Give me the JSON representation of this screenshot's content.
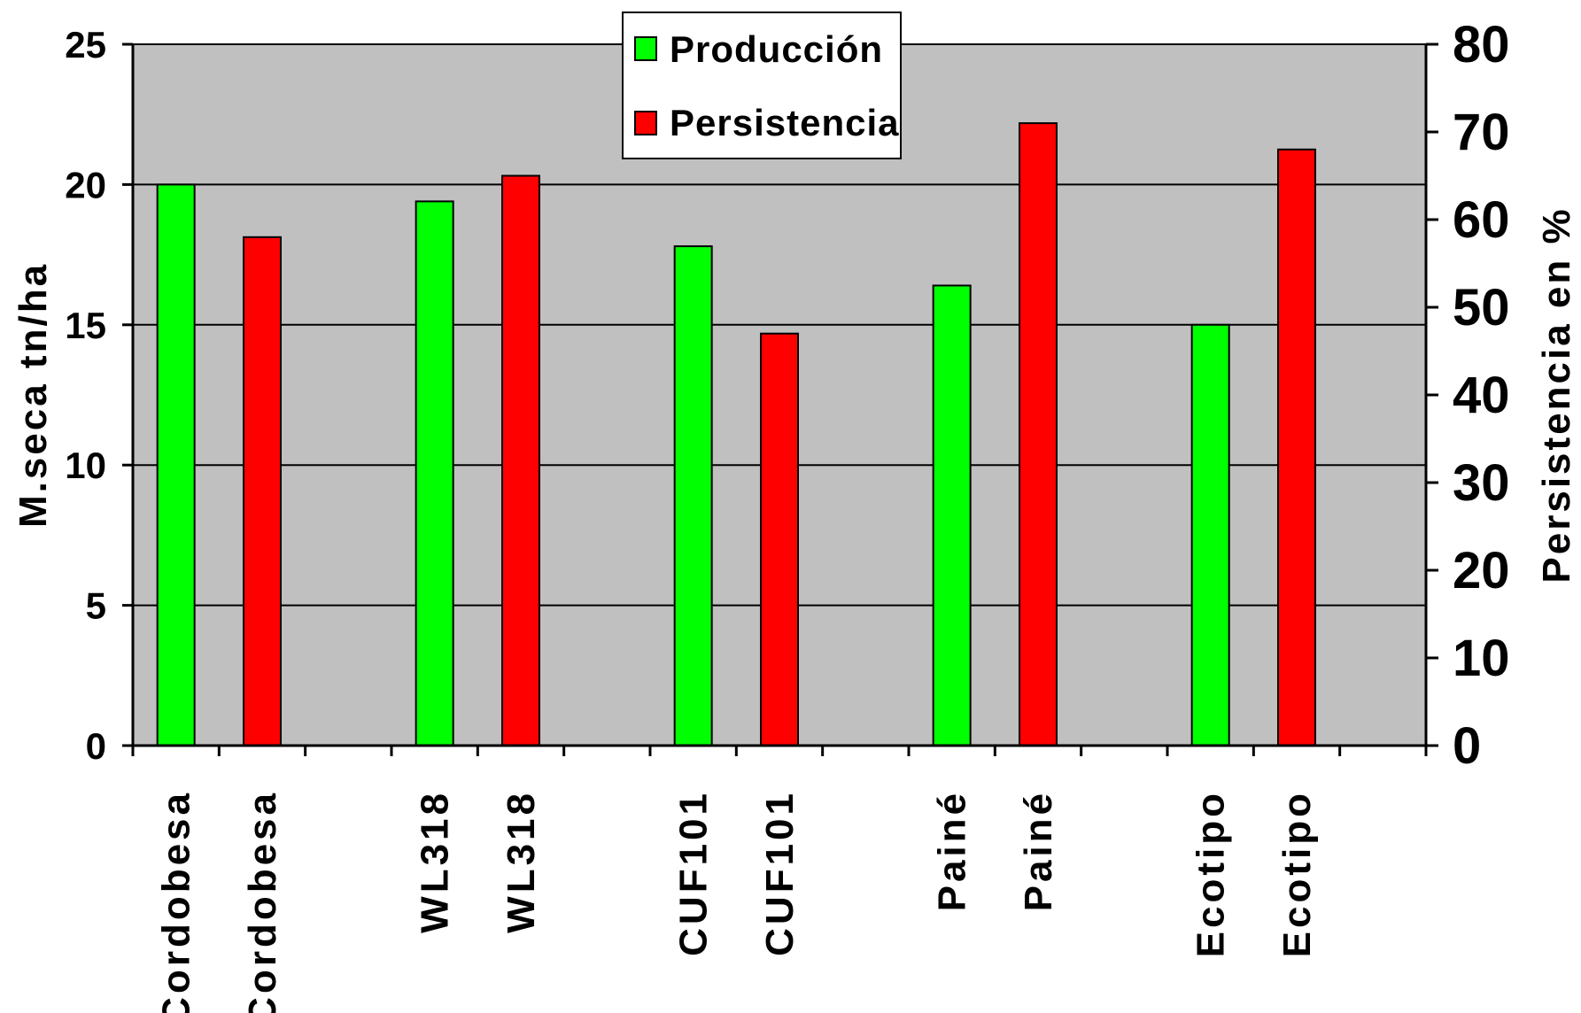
{
  "chart_data": {
    "type": "bar",
    "categories": [
      "Cordobesa",
      "WL318",
      "CUF101",
      "Painé",
      "Ecotipo"
    ],
    "series": [
      {
        "name": "Producción",
        "axis": "left",
        "color": "#00ff00",
        "bar_labels": [
          "Cordobesa",
          "WL318",
          "CUF101",
          "Painé",
          "Ecotipo"
        ],
        "values": [
          20.0,
          19.4,
          17.8,
          16.4,
          15.0
        ]
      },
      {
        "name": "Persistencia",
        "axis": "right",
        "color": "#ff0000",
        "bar_labels": [
          "Cordobesa",
          "WL318",
          "CUF101",
          "Painé",
          "Ecotipo"
        ],
        "values": [
          58,
          65,
          47,
          71,
          68
        ]
      }
    ],
    "ylabel": "M.seca tn/ha",
    "ylim": [
      0,
      25
    ],
    "yticks": [
      "0",
      "5",
      "10",
      "15",
      "20",
      "25"
    ],
    "y2label": "Persistencia en %",
    "y2lim": [
      0,
      80
    ],
    "y2ticks": [
      "0",
      "10",
      "20",
      "30",
      "40",
      "50",
      "60",
      "70",
      "80"
    ],
    "grid": true,
    "plot_background": "#c0c0c0",
    "legend_position": "top-center"
  }
}
